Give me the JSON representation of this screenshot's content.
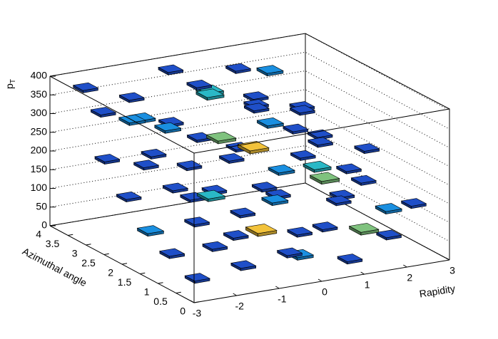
{
  "chart_data": {
    "type": "box3d",
    "xlabel": "Rapidity",
    "ylabel": "Azimuthal angle",
    "zlabel": [
      "p",
      "T"
    ],
    "xlim": [
      -3,
      3
    ],
    "xticks": [
      -3,
      -2,
      -1,
      0,
      1,
      2,
      3
    ],
    "ylim": [
      0,
      4
    ],
    "yticks": [
      0,
      0.5,
      1,
      1.5,
      2,
      2.5,
      3,
      3.5,
      4
    ],
    "zlim": [
      0,
      400
    ],
    "zticks": [
      0,
      50,
      100,
      150,
      200,
      250,
      300,
      350,
      400
    ],
    "grid": true,
    "palette": [
      "#1f4fc8",
      "#1a8fe0",
      "#2ab8c6",
      "#7fc27e",
      "#f2c23a"
    ],
    "x": [
      -2.5,
      -2,
      -1.5,
      -1,
      -0.5,
      0,
      0.5,
      1,
      1.5,
      2,
      2.5,
      -2.5,
      -2,
      -1.5,
      -1,
      -0.5,
      0,
      0.5,
      1,
      1.5,
      2,
      2.5,
      -2.5,
      -2,
      -1.5,
      -1,
      -0.5,
      0,
      0.5,
      1,
      1.5,
      2,
      2.5,
      -2.5,
      -2,
      -1.5,
      -1,
      -0.5,
      0,
      0.5,
      1,
      1.5,
      2,
      2.5,
      -2.5,
      -2,
      -1.5,
      -1,
      -0.5,
      0,
      0.5,
      1,
      1.5,
      2,
      2.5,
      -2.5,
      -2,
      -1.5,
      -1,
      -0.5,
      0,
      0.5,
      1,
      1.5,
      2,
      2.5
    ],
    "y": [
      3.6,
      3.7,
      3.5,
      3.8,
      3.6,
      3.4,
      3.7,
      3.5,
      3.6,
      3.8,
      3.5,
      3,
      2.9,
      3.1,
      3,
      2.8,
      3.1,
      2.9,
      3,
      3.2,
      2.9,
      3,
      2.4,
      2.3,
      2.5,
      2.4,
      2.2,
      2.5,
      2.4,
      2.3,
      2.5,
      2.4,
      2.2,
      1.8,
      1.7,
      1.9,
      1.8,
      1.6,
      1.9,
      1.8,
      1.7,
      1.9,
      1.8,
      1.7,
      1.2,
      1.1,
      1.3,
      1.2,
      1,
      1.3,
      1.2,
      1.1,
      1.3,
      1.2,
      1.1,
      0.5,
      0.6,
      0.4,
      0.5,
      0.3,
      0.6,
      0.5,
      0.4,
      0.6,
      0.5,
      0.4
    ],
    "z": [
      380,
      300,
      340,
      260,
      390,
      350,
      310,
      370,
      280,
      330,
      240,
      220,
      320,
      180,
      290,
      250,
      340,
      200,
      300,
      230,
      270,
      190,
      150,
      260,
      310,
      120,
      280,
      200,
      330,
      160,
      250,
      210,
      140,
      90,
      200,
      240,
      170,
      110,
      260,
      130,
      230,
      180,
      100,
      220,
      60,
      140,
      190,
      80,
      210,
      150,
      60,
      200,
      120,
      170,
      90,
      30,
      100,
      50,
      130,
      70,
      40,
      110,
      20,
      80,
      60,
      140
    ],
    "values": [
      1,
      1,
      1,
      2,
      1,
      1,
      3,
      1,
      1,
      2,
      1,
      1,
      2,
      1,
      1,
      1,
      3,
      1,
      1,
      2,
      1,
      1,
      1,
      1,
      2,
      1,
      4,
      1,
      1,
      2,
      1,
      1,
      1,
      2,
      1,
      1,
      1,
      1,
      5,
      1,
      1,
      3,
      1,
      1,
      1,
      1,
      3,
      1,
      1,
      2,
      1,
      4,
      1,
      1,
      2,
      1,
      1,
      1,
      5,
      1,
      2,
      1,
      1,
      4,
      1,
      1
    ]
  }
}
